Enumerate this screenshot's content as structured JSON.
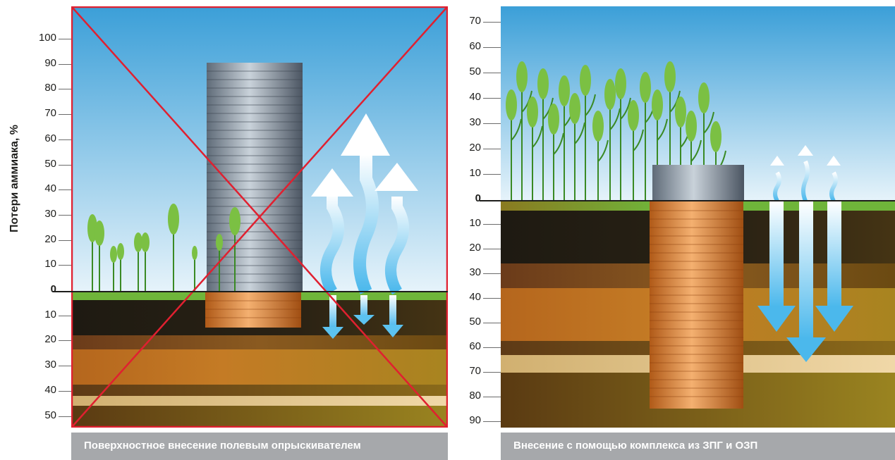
{
  "left_panel": {
    "caption": "Поверхностное внесение полевым опрыскивателем",
    "y_axis_label": "Потери аммиака, %",
    "ticks_above": [
      "100",
      "90",
      "80",
      "70",
      "60",
      "50",
      "40",
      "30",
      "20",
      "10"
    ],
    "zero": "0",
    "ticks_below": [
      "10",
      "20",
      "30",
      "40",
      "50"
    ],
    "crossed_out": true
  },
  "right_panel": {
    "caption": "Внесение с помощью комплекса из ЗПГ и ОЗП",
    "ticks_above": [
      "70",
      "60",
      "50",
      "40",
      "30",
      "20",
      "10"
    ],
    "zero": "0",
    "ticks_below": [
      "10",
      "20",
      "30",
      "40",
      "50",
      "60",
      "70",
      "80",
      "90"
    ]
  },
  "colors": {
    "sky_top": "#3b9fd8",
    "sky_bottom": "#e6f3fa",
    "grass": "#6fb53a",
    "soil_dark": "#1e1a12",
    "soil_orange": "#b5661d",
    "soil_olive": "#9a8420",
    "soil_light": "#e2c78a",
    "cross": "#e02030",
    "arrow": "#5cc3f0",
    "cylinder_steel": "#8a96a3",
    "cylinder_copper": "#d4843a"
  }
}
